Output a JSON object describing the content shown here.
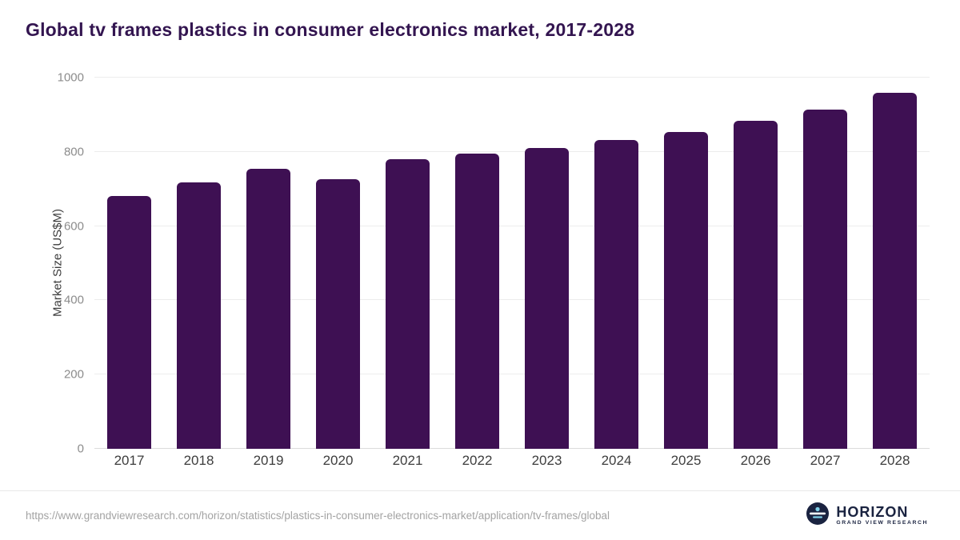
{
  "header": {
    "title": "Global tv frames plastics in consumer electronics market, 2017-2028"
  },
  "chart_data": {
    "type": "bar",
    "title": "Global tv frames plastics in consumer electronics market, 2017-2028",
    "categories": [
      "2017",
      "2018",
      "2019",
      "2020",
      "2021",
      "2022",
      "2023",
      "2024",
      "2025",
      "2026",
      "2027",
      "2028"
    ],
    "values": [
      680,
      718,
      754,
      727,
      781,
      796,
      811,
      831,
      853,
      883,
      914,
      959
    ],
    "xlabel": "",
    "ylabel": "Market Size (US$M)",
    "ylim": [
      0,
      1000
    ],
    "yticks": [
      0,
      200,
      400,
      600,
      800,
      1000
    ],
    "grid": true,
    "legend": "none",
    "bar_color": "#3e1053"
  },
  "footer": {
    "source_url": "https://www.grandviewresearch.com/horizon/statistics/plastics-in-consumer-electronics-market/application/tv-frames/global",
    "logo": {
      "name": "HORIZON",
      "subtext": "GRAND VIEW RESEARCH"
    }
  },
  "colors": {
    "accent": "#3e1053",
    "title_text": "#331550",
    "tick_text": "#8c8c8c",
    "axis_text": "#3d3d3d",
    "gridline": "#ececec",
    "footer_text": "#a3a3a3",
    "logo_navy": "#1a2340"
  }
}
